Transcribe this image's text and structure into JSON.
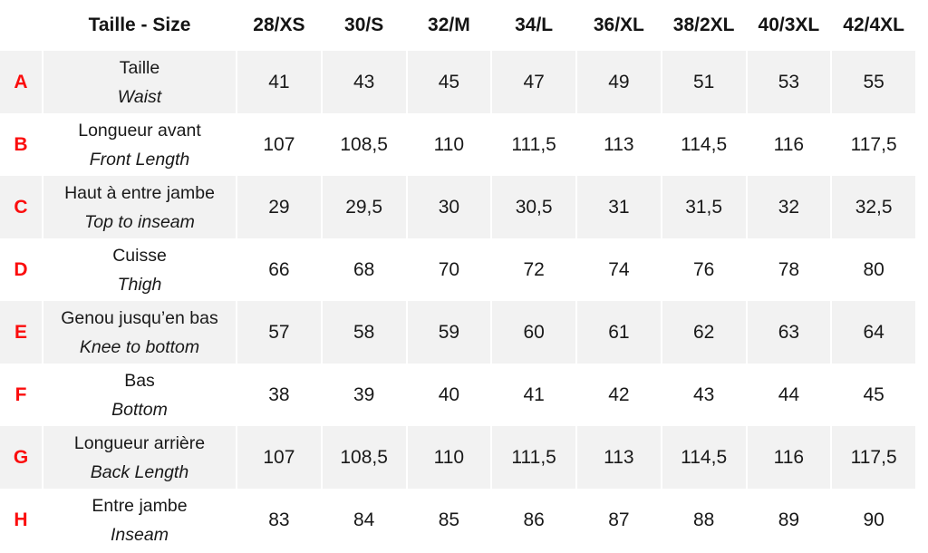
{
  "chart_data": {
    "type": "table",
    "title": "Taille - Size",
    "corner_header": "Taille - Size",
    "columns": [
      "28/XS",
      "30/S",
      "32/M",
      "34/L",
      "36/XL",
      "38/2XL",
      "40/3XL",
      "42/4XL"
    ],
    "rows": [
      {
        "letter": "A",
        "label_fr": "Taille",
        "label_en": "Waist",
        "values": [
          "41",
          "43",
          "45",
          "47",
          "49",
          "51",
          "53",
          "55"
        ]
      },
      {
        "letter": "B",
        "label_fr": "Longueur avant",
        "label_en": "Front Length",
        "values": [
          "107",
          "108,5",
          "110",
          "111,5",
          "113",
          "114,5",
          "116",
          "117,5"
        ]
      },
      {
        "letter": "C",
        "label_fr": "Haut à entre jambe",
        "label_en": "Top to inseam",
        "values": [
          "29",
          "29,5",
          "30",
          "30,5",
          "31",
          "31,5",
          "32",
          "32,5"
        ]
      },
      {
        "letter": "D",
        "label_fr": "Cuisse",
        "label_en": "Thigh",
        "values": [
          "66",
          "68",
          "70",
          "72",
          "74",
          "76",
          "78",
          "80"
        ]
      },
      {
        "letter": "E",
        "label_fr": "Genou jusqu’en bas",
        "label_en": "Knee to bottom",
        "values": [
          "57",
          "58",
          "59",
          "60",
          "61",
          "62",
          "63",
          "64"
        ]
      },
      {
        "letter": "F",
        "label_fr": "Bas",
        "label_en": "Bottom",
        "values": [
          "38",
          "39",
          "40",
          "41",
          "42",
          "43",
          "44",
          "45"
        ]
      },
      {
        "letter": "G",
        "label_fr": "Longueur arrière",
        "label_en": "Back Length",
        "values": [
          "107",
          "108,5",
          "110",
          "111,5",
          "113",
          "114,5",
          "116",
          "117,5"
        ]
      },
      {
        "letter": "H",
        "label_fr": "Entre jambe",
        "label_en": "Inseam",
        "values": [
          "83",
          "84",
          "85",
          "86",
          "87",
          "88",
          "89",
          "90"
        ]
      }
    ],
    "layout": {
      "stripe_color": "#f2f2f2",
      "letter_color": "#fb0d0d",
      "grid": "white 2px separators",
      "units": "centimeters (implied)"
    }
  }
}
